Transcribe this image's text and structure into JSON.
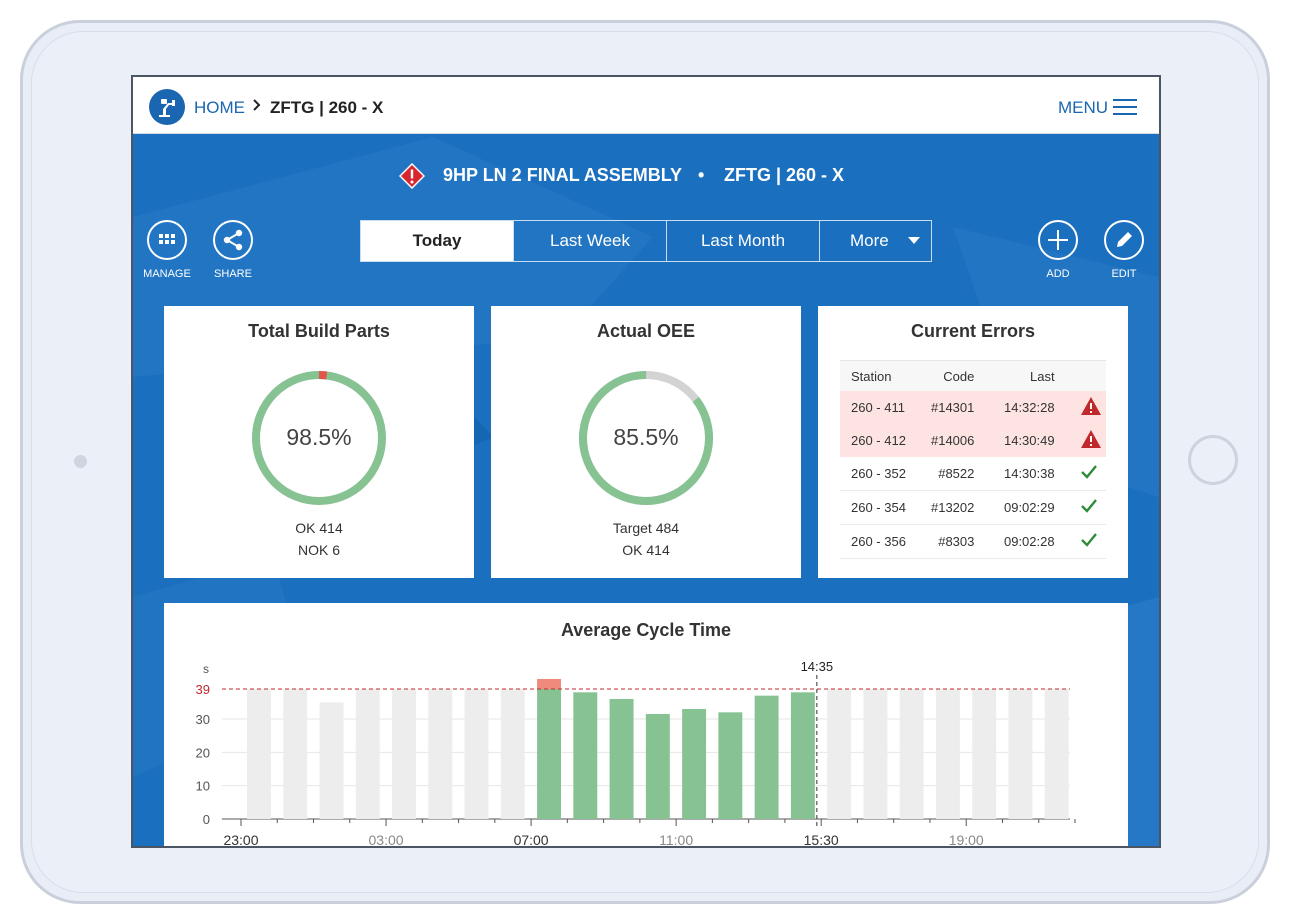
{
  "nav": {
    "home": "HOME",
    "separator": ">",
    "current": "ZFTG | 260 - X",
    "menu": "MENU"
  },
  "header": {
    "line": "9HP LN 2 FINAL ASSEMBLY",
    "dot": "•",
    "station": "ZFTG | 260 - X"
  },
  "actions": {
    "manage": "MANAGE",
    "share": "SHARE",
    "add": "ADD",
    "edit": "EDIT"
  },
  "tabs": [
    {
      "label": "Today",
      "active": true
    },
    {
      "label": "Last Week",
      "active": false
    },
    {
      "label": "Last Month",
      "active": false
    },
    {
      "label": "More",
      "active": false
    }
  ],
  "build_parts": {
    "title": "Total Build Parts",
    "value": "98.5%",
    "fraction": 0.985,
    "ok": "OK 414",
    "nok": "NOK 6"
  },
  "oee": {
    "title": "Actual OEE",
    "value": "85.5%",
    "fraction": 0.855,
    "target": "Target 484",
    "ok": "OK 414"
  },
  "errors": {
    "title": "Current Errors",
    "headers": [
      "Station",
      "Code",
      "Last"
    ],
    "rows": [
      {
        "station": "260 - 411",
        "code": "#14301",
        "last": "14:32:28",
        "status": "error"
      },
      {
        "station": "260 - 412",
        "code": "#14006",
        "last": "14:30:49",
        "status": "error"
      },
      {
        "station": "260 - 352",
        "code": "#8522",
        "last": "14:30:38",
        "status": "ok"
      },
      {
        "station": "260 - 354",
        "code": "#13202",
        "last": "09:02:29",
        "status": "ok"
      },
      {
        "station": "260 - 356",
        "code": "#8303",
        "last": "09:02:28",
        "status": "ok"
      }
    ]
  },
  "colors": {
    "brand": "#1a66b0",
    "green": "#87c293",
    "grey": "#ededed",
    "red": "#c0292c",
    "over": "#f08a7d"
  },
  "chart_data": {
    "type": "bar",
    "title": "Average Cycle Time",
    "ylabel": "s",
    "ylim": [
      0,
      42
    ],
    "yticks": [
      0,
      10,
      20,
      30
    ],
    "threshold": 39,
    "threshold_label": "39",
    "marker_label": "14:35",
    "xtick_labels": [
      "23:00",
      "03:00",
      "07:00",
      "11:00",
      "15:30",
      "19:00"
    ],
    "bars": [
      {
        "value": 39,
        "state": "future"
      },
      {
        "value": 39,
        "state": "future"
      },
      {
        "value": 35,
        "state": "future"
      },
      {
        "value": 39,
        "state": "future"
      },
      {
        "value": 39,
        "state": "future"
      },
      {
        "value": 39,
        "state": "future"
      },
      {
        "value": 39,
        "state": "future"
      },
      {
        "value": 39,
        "state": "future"
      },
      {
        "value": 42,
        "state": "actual"
      },
      {
        "value": 38,
        "state": "actual"
      },
      {
        "value": 36,
        "state": "actual"
      },
      {
        "value": 31.5,
        "state": "actual"
      },
      {
        "value": 33,
        "state": "actual"
      },
      {
        "value": 32,
        "state": "actual"
      },
      {
        "value": 37,
        "state": "actual"
      },
      {
        "value": 38,
        "state": "actual"
      },
      {
        "value": 39,
        "state": "future"
      },
      {
        "value": 39,
        "state": "future"
      },
      {
        "value": 39,
        "state": "future"
      },
      {
        "value": 39,
        "state": "future"
      },
      {
        "value": 39,
        "state": "future"
      },
      {
        "value": 39,
        "state": "future"
      },
      {
        "value": 39,
        "state": "future"
      }
    ]
  }
}
